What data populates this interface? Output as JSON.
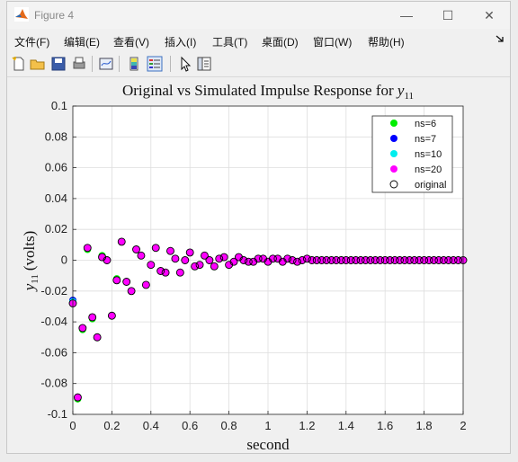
{
  "window": {
    "title": "Figure 4",
    "controls": {
      "minimize": "—",
      "maximize": "☐",
      "close": "✕"
    }
  },
  "menubar": {
    "items": [
      "文件(F)",
      "编辑(E)",
      "查看(V)",
      "插入(I)",
      "工具(T)",
      "桌面(D)",
      "窗口(W)",
      "帮助(H)"
    ],
    "overflow_icon": "arrow-icon"
  },
  "toolbar": {
    "buttons": [
      "new-figure-icon",
      "open-file-icon",
      "save-icon",
      "print-icon",
      "link-plot-icon",
      "colorbar-icon",
      "legend-icon",
      "edit-plot-icon",
      "property-inspector-icon"
    ]
  },
  "chart_data": {
    "type": "scatter",
    "title_prefix": "Original vs Simulated Impulse Response for ",
    "title_var": "y",
    "title_sub": "11",
    "xlabel": "second",
    "ylabel_var": "y",
    "ylabel_sub": "11",
    "ylabel_unit": "(volts)",
    "xlim": [
      0,
      2
    ],
    "ylim": [
      -0.1,
      0.1
    ],
    "xticks": [
      "0",
      "0.2",
      "0.4",
      "0.6",
      "0.8",
      "1",
      "1.2",
      "1.4",
      "1.6",
      "1.8",
      "2"
    ],
    "yticks": [
      "-0.1",
      "-0.08",
      "-0.06",
      "-0.04",
      "-0.02",
      "0",
      "0.02",
      "0.04",
      "0.06",
      "0.08",
      "0.1"
    ],
    "grid": true,
    "legend_position": "top-right",
    "x": [
      0,
      0.025,
      0.05,
      0.075,
      0.1,
      0.125,
      0.15,
      0.175,
      0.2,
      0.225,
      0.25,
      0.275,
      0.3,
      0.325,
      0.35,
      0.375,
      0.4,
      0.425,
      0.45,
      0.475,
      0.5,
      0.525,
      0.55,
      0.575,
      0.6,
      0.625,
      0.65,
      0.675,
      0.7,
      0.725,
      0.75,
      0.775,
      0.8,
      0.825,
      0.85,
      0.875,
      0.9,
      0.925,
      0.95,
      0.975,
      1,
      1.025,
      1.05,
      1.075,
      1.1,
      1.125,
      1.15,
      1.175,
      1.2,
      1.225,
      1.25,
      1.275,
      1.3,
      1.325,
      1.35,
      1.375,
      1.4,
      1.425,
      1.45,
      1.475,
      1.5,
      1.525,
      1.55,
      1.575,
      1.6,
      1.625,
      1.65,
      1.675,
      1.7,
      1.725,
      1.75,
      1.775,
      1.8,
      1.825,
      1.85,
      1.875,
      1.9,
      1.925,
      1.95,
      1.975,
      2
    ],
    "series": [
      {
        "name": "ns=6",
        "color": "#00ee00",
        "values": [
          -0.026,
          -0.09,
          -0.045,
          0.007,
          -0.038,
          -0.05,
          0.003,
          0,
          -0.036,
          -0.012,
          0.012,
          -0.014,
          -0.02,
          0.007,
          0.003,
          -0.016,
          -0.003,
          0.008,
          -0.007,
          -0.008,
          0.006,
          0.001,
          -0.008,
          0,
          0.005,
          -0.004,
          -0.003,
          0.003,
          0,
          -0.004,
          0.001,
          0.002,
          -0.003,
          -0.001,
          0.002,
          0,
          -0.001,
          -0.001,
          0.001,
          0.001,
          -0.001,
          0.001,
          0.001,
          -0.001,
          0.001,
          0,
          -0.001,
          0,
          0.001,
          0,
          0,
          0,
          0,
          0,
          0,
          0,
          0,
          0,
          0,
          0,
          0,
          0,
          0,
          0,
          0,
          0,
          0,
          0,
          0,
          0,
          0,
          0,
          0,
          0,
          0,
          0,
          0,
          0,
          0,
          0,
          0
        ]
      },
      {
        "name": "ns=7",
        "color": "#0000ff",
        "values": [
          -0.026,
          -0.089,
          -0.044,
          0.008,
          -0.037,
          -0.05,
          0.002,
          0,
          -0.036,
          -0.013,
          0.012,
          -0.014,
          -0.02,
          0.007,
          0.003,
          -0.016,
          -0.003,
          0.008,
          -0.007,
          -0.008,
          0.006,
          0.001,
          -0.008,
          0,
          0.005,
          -0.004,
          -0.003,
          0.003,
          0,
          -0.004,
          0.001,
          0.002,
          -0.003,
          -0.001,
          0.002,
          0,
          -0.001,
          -0.001,
          0.001,
          0.001,
          -0.001,
          0.001,
          0.001,
          -0.001,
          0.001,
          0,
          -0.001,
          0,
          0.001,
          0,
          0,
          0,
          0,
          0,
          0,
          0,
          0,
          0,
          0,
          0,
          0,
          0,
          0,
          0,
          0,
          0,
          0,
          0,
          0,
          0,
          0,
          0,
          0,
          0,
          0,
          0,
          0,
          0,
          0,
          0,
          0
        ]
      },
      {
        "name": "ns=10",
        "color": "#00eeee",
        "values": [
          -0.027,
          -0.089,
          -0.044,
          0.008,
          -0.037,
          -0.05,
          0.002,
          0,
          -0.036,
          -0.013,
          0.012,
          -0.014,
          -0.02,
          0.007,
          0.003,
          -0.016,
          -0.003,
          0.008,
          -0.007,
          -0.008,
          0.006,
          0.001,
          -0.008,
          0,
          0.005,
          -0.004,
          -0.003,
          0.003,
          0,
          -0.004,
          0.001,
          0.002,
          -0.003,
          -0.001,
          0.002,
          0,
          -0.001,
          -0.001,
          0.001,
          0.001,
          -0.001,
          0.001,
          0.001,
          -0.001,
          0.001,
          0,
          -0.001,
          0,
          0.001,
          0,
          0,
          0,
          0,
          0,
          0,
          0,
          0,
          0,
          0,
          0,
          0,
          0,
          0,
          0,
          0,
          0,
          0,
          0,
          0,
          0,
          0,
          0,
          0,
          0,
          0,
          0,
          0,
          0,
          0,
          0,
          0
        ]
      },
      {
        "name": "ns=20",
        "color": "#ff00ff",
        "values": [
          -0.028,
          -0.089,
          -0.044,
          0.008,
          -0.037,
          -0.05,
          0.002,
          0,
          -0.036,
          -0.013,
          0.012,
          -0.014,
          -0.02,
          0.007,
          0.003,
          -0.016,
          -0.003,
          0.008,
          -0.007,
          -0.008,
          0.006,
          0.001,
          -0.008,
          0,
          0.005,
          -0.004,
          -0.003,
          0.003,
          0,
          -0.004,
          0.001,
          0.002,
          -0.003,
          -0.001,
          0.002,
          0,
          -0.001,
          -0.001,
          0.001,
          0.001,
          -0.001,
          0.001,
          0.001,
          -0.001,
          0.001,
          0,
          -0.001,
          0,
          0.001,
          0,
          0,
          0,
          0,
          0,
          0,
          0,
          0,
          0,
          0,
          0,
          0,
          0,
          0,
          0,
          0,
          0,
          0,
          0,
          0,
          0,
          0,
          0,
          0,
          0,
          0,
          0,
          0,
          0,
          0,
          0,
          0
        ]
      },
      {
        "name": "original",
        "color": "none",
        "values": [
          -0.028,
          -0.089,
          -0.044,
          0.008,
          -0.037,
          -0.05,
          0.002,
          0,
          -0.036,
          -0.013,
          0.012,
          -0.014,
          -0.02,
          0.007,
          0.003,
          -0.016,
          -0.003,
          0.008,
          -0.007,
          -0.008,
          0.006,
          0.001,
          -0.008,
          0,
          0.005,
          -0.004,
          -0.003,
          0.003,
          0,
          -0.004,
          0.001,
          0.002,
          -0.003,
          -0.001,
          0.002,
          0,
          -0.001,
          -0.001,
          0.001,
          0.001,
          -0.001,
          0.001,
          0.001,
          -0.001,
          0.001,
          0,
          -0.001,
          0,
          0.001,
          0,
          0,
          0,
          0,
          0,
          0,
          0,
          0,
          0,
          0,
          0,
          0,
          0,
          0,
          0,
          0,
          0,
          0,
          0,
          0,
          0,
          0,
          0,
          0,
          0,
          0,
          0,
          0,
          0,
          0,
          0,
          0
        ]
      }
    ]
  }
}
